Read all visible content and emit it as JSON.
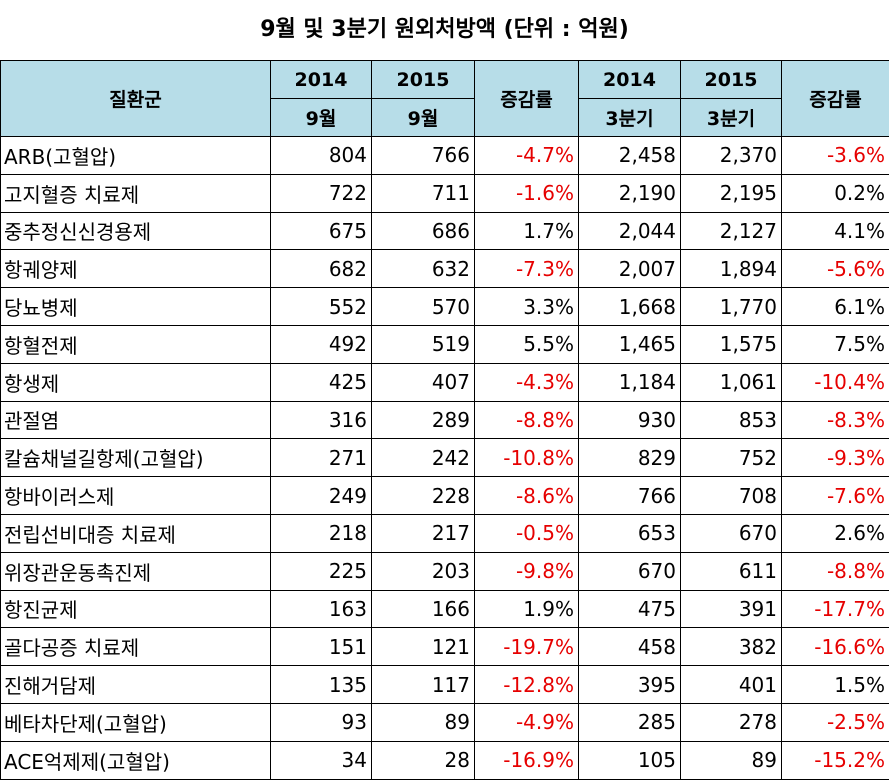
{
  "title": "9월 및 3분기 원외처방액 (단위 : 억원)",
  "header": {
    "category": "질환군",
    "monthly": {
      "y1": "2014",
      "y2": "2015",
      "period1": "9월",
      "period2": "9월",
      "change": "증감률"
    },
    "quarterly": {
      "y1": "2014",
      "y2": "2015",
      "period1": "3분기",
      "period2": "3분기",
      "change": "증감률"
    }
  },
  "rows": [
    {
      "name": "ARB(고혈압)",
      "m2014": "804",
      "m2015": "766",
      "mchg": "-4.7%",
      "q2014": "2,458",
      "q2015": "2,370",
      "qchg": "-3.6%"
    },
    {
      "name": "고지혈증 치료제",
      "m2014": "722",
      "m2015": "711",
      "mchg": "-1.6%",
      "q2014": "2,190",
      "q2015": "2,195",
      "qchg": "0.2%"
    },
    {
      "name": "중추정신신경용제",
      "m2014": "675",
      "m2015": "686",
      "mchg": "1.7%",
      "q2014": "2,044",
      "q2015": "2,127",
      "qchg": "4.1%"
    },
    {
      "name": "항궤양제",
      "m2014": "682",
      "m2015": "632",
      "mchg": "-7.3%",
      "q2014": "2,007",
      "q2015": "1,894",
      "qchg": "-5.6%"
    },
    {
      "name": "당뇨병제",
      "m2014": "552",
      "m2015": "570",
      "mchg": "3.3%",
      "q2014": "1,668",
      "q2015": "1,770",
      "qchg": "6.1%"
    },
    {
      "name": "항혈전제",
      "m2014": "492",
      "m2015": "519",
      "mchg": "5.5%",
      "q2014": "1,465",
      "q2015": "1,575",
      "qchg": "7.5%"
    },
    {
      "name": "항생제",
      "m2014": "425",
      "m2015": "407",
      "mchg": "-4.3%",
      "q2014": "1,184",
      "q2015": "1,061",
      "qchg": "-10.4%"
    },
    {
      "name": "관절염",
      "m2014": "316",
      "m2015": "289",
      "mchg": "-8.8%",
      "q2014": "930",
      "q2015": "853",
      "qchg": "-8.3%"
    },
    {
      "name": "칼슘채널길항제(고혈압)",
      "m2014": "271",
      "m2015": "242",
      "mchg": "-10.8%",
      "q2014": "829",
      "q2015": "752",
      "qchg": "-9.3%"
    },
    {
      "name": "항바이러스제",
      "m2014": "249",
      "m2015": "228",
      "mchg": "-8.6%",
      "q2014": "766",
      "q2015": "708",
      "qchg": "-7.6%"
    },
    {
      "name": "전립선비대증 치료제",
      "m2014": "218",
      "m2015": "217",
      "mchg": "-0.5%",
      "q2014": "653",
      "q2015": "670",
      "qchg": "2.6%"
    },
    {
      "name": "위장관운동촉진제",
      "m2014": "225",
      "m2015": "203",
      "mchg": "-9.8%",
      "q2014": "670",
      "q2015": "611",
      "qchg": "-8.8%"
    },
    {
      "name": "항진균제",
      "m2014": "163",
      "m2015": "166",
      "mchg": "1.9%",
      "q2014": "475",
      "q2015": "391",
      "qchg": "-17.7%"
    },
    {
      "name": "골다공증 치료제",
      "m2014": "151",
      "m2015": "121",
      "mchg": "-19.7%",
      "q2014": "458",
      "q2015": "382",
      "qchg": "-16.6%"
    },
    {
      "name": "진해거담제",
      "m2014": "135",
      "m2015": "117",
      "mchg": "-12.8%",
      "q2014": "395",
      "q2015": "401",
      "qchg": "1.5%"
    },
    {
      "name": "베타차단제(고혈압)",
      "m2014": "93",
      "m2015": "89",
      "mchg": "-4.9%",
      "q2014": "285",
      "q2015": "278",
      "qchg": "-2.5%"
    },
    {
      "name": "ACE억제제(고혈압)",
      "m2014": "34",
      "m2015": "28",
      "mchg": "-16.9%",
      "q2014": "105",
      "q2015": "89",
      "qchg": "-15.2%"
    }
  ],
  "colors": {
    "header_bg": "#b7dde8",
    "negative": "#e60000",
    "text": "#000000"
  }
}
